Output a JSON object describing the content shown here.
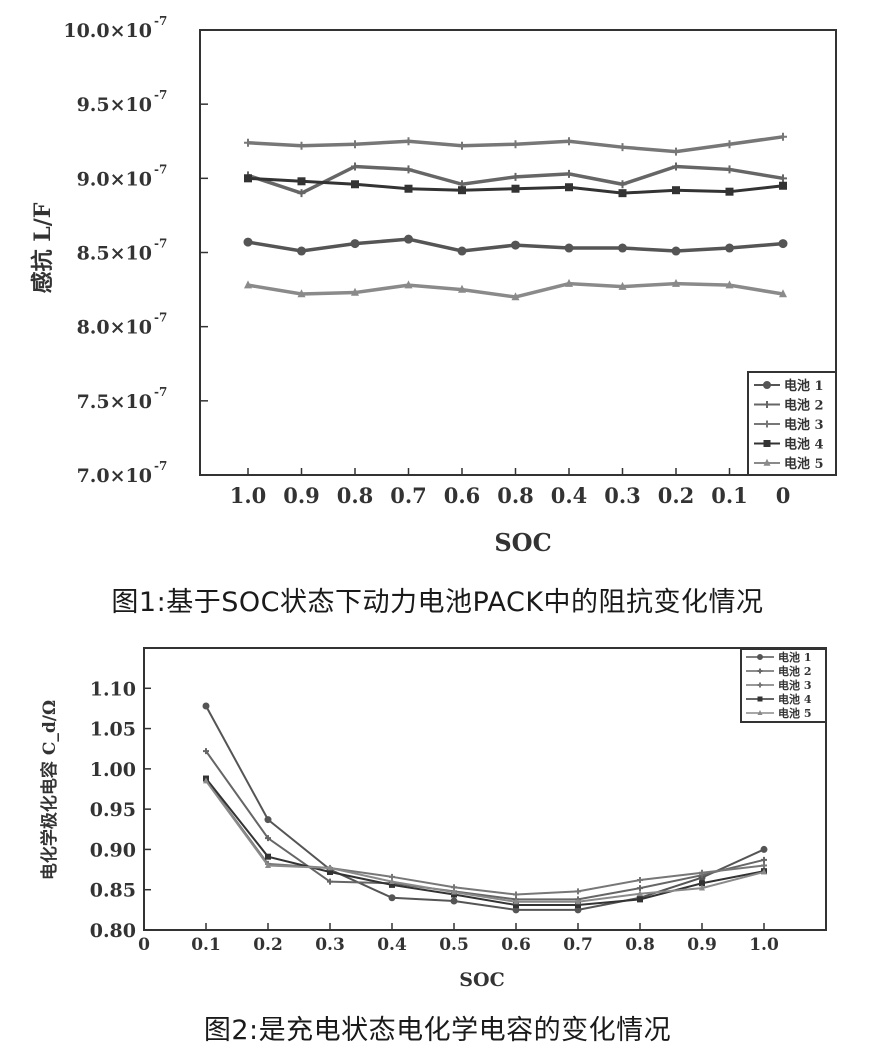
{
  "chart_data": [
    {
      "type": "line",
      "title": "",
      "xlabel": "SOC",
      "ylabel": "感抗 L/F",
      "categories": [
        "1.0",
        "0.9",
        "0.8",
        "0.7",
        "0.6",
        "0.8",
        "0.4",
        "0.3",
        "0.2",
        "0.1",
        "0"
      ],
      "y_tick_labels": [
        "10.0×10",
        "9.5×10",
        "9.0×10",
        "8.5×10",
        "8.0×10",
        "7.5×10",
        "7.0×10"
      ],
      "y_tick_exponent": "-7",
      "ylim": [
        7e-07,
        1e-06
      ],
      "grid": false,
      "legend_placement": "bottom-right",
      "series": [
        {
          "name": "电池 1",
          "marker": "circle",
          "color": "#555555",
          "values": [
            8.57e-07,
            8.51e-07,
            8.56e-07,
            8.59e-07,
            8.51e-07,
            8.55e-07,
            8.53e-07,
            8.53e-07,
            8.51e-07,
            8.53e-07,
            8.56e-07
          ]
        },
        {
          "name": "电池 2",
          "marker": "plus",
          "color": "#666666",
          "values": [
            9.02e-07,
            8.9e-07,
            9.08e-07,
            9.06e-07,
            8.96e-07,
            9.01e-07,
            9.03e-07,
            8.96e-07,
            9.08e-07,
            9.06e-07,
            9e-07
          ]
        },
        {
          "name": "电池 3",
          "marker": "plus",
          "color": "#777777",
          "values": [
            9.24e-07,
            9.22e-07,
            9.23e-07,
            9.25e-07,
            9.22e-07,
            9.23e-07,
            9.25e-07,
            9.21e-07,
            9.18e-07,
            9.23e-07,
            9.28e-07
          ]
        },
        {
          "name": "电池 4",
          "marker": "square",
          "color": "#333333",
          "values": [
            9e-07,
            8.98e-07,
            8.96e-07,
            8.93e-07,
            8.92e-07,
            8.93e-07,
            8.94e-07,
            8.9e-07,
            8.92e-07,
            8.91e-07,
            8.95e-07
          ]
        },
        {
          "name": "电池 5",
          "marker": "triangle",
          "color": "#8a8a8a",
          "values": [
            8.28e-07,
            8.22e-07,
            8.23e-07,
            8.28e-07,
            8.25e-07,
            8.2e-07,
            8.29e-07,
            8.27e-07,
            8.29e-07,
            8.28e-07,
            8.22e-07
          ]
        }
      ]
    },
    {
      "type": "line",
      "title": "",
      "xlabel": "SOC",
      "ylabel": "电化学极化电容 C_d/Ω",
      "x_tick_labels": [
        "0",
        "0.1",
        "0.2",
        "0.3",
        "0.4",
        "0.5",
        "0.6",
        "0.7",
        "0.8",
        "0.9",
        "1.0"
      ],
      "y_tick_labels": [
        "1.10",
        "1.05",
        "1.00",
        "0.95",
        "0.90",
        "0.85",
        "0.80"
      ],
      "xlim": [
        0,
        1.1
      ],
      "ylim": [
        0.8,
        1.15
      ],
      "grid": false,
      "legend_placement": "top-right",
      "x": [
        0.1,
        0.2,
        0.3,
        0.4,
        0.5,
        0.6,
        0.7,
        0.8,
        0.9,
        1.0
      ],
      "series": [
        {
          "name": "电池 1",
          "marker": "circle",
          "color": "#555555",
          "values": [
            1.078,
            0.937,
            0.875,
            0.84,
            0.836,
            0.825,
            0.825,
            0.84,
            0.865,
            0.9
          ]
        },
        {
          "name": "电池 2",
          "marker": "plus",
          "color": "#666666",
          "values": [
            1.022,
            0.914,
            0.86,
            0.858,
            0.848,
            0.838,
            0.838,
            0.852,
            0.868,
            0.887
          ]
        },
        {
          "name": "电池 3",
          "marker": "plus",
          "color": "#777777",
          "values": [
            0.986,
            0.882,
            0.877,
            0.866,
            0.853,
            0.844,
            0.848,
            0.862,
            0.871,
            0.88
          ]
        },
        {
          "name": "电池 4",
          "marker": "square",
          "color": "#333333",
          "values": [
            0.988,
            0.891,
            0.872,
            0.856,
            0.844,
            0.831,
            0.831,
            0.838,
            0.858,
            0.873
          ]
        },
        {
          "name": "电池 5",
          "marker": "triangle",
          "color": "#8a8a8a",
          "values": [
            0.985,
            0.88,
            0.877,
            0.86,
            0.847,
            0.835,
            0.835,
            0.845,
            0.852,
            0.872
          ]
        }
      ]
    }
  ],
  "captions": {
    "figure1": "图1:基于SOC状态下动力电池PACK中的阻抗变化情况",
    "figure2": "图2:是充电状态电化学电容的变化情况"
  }
}
